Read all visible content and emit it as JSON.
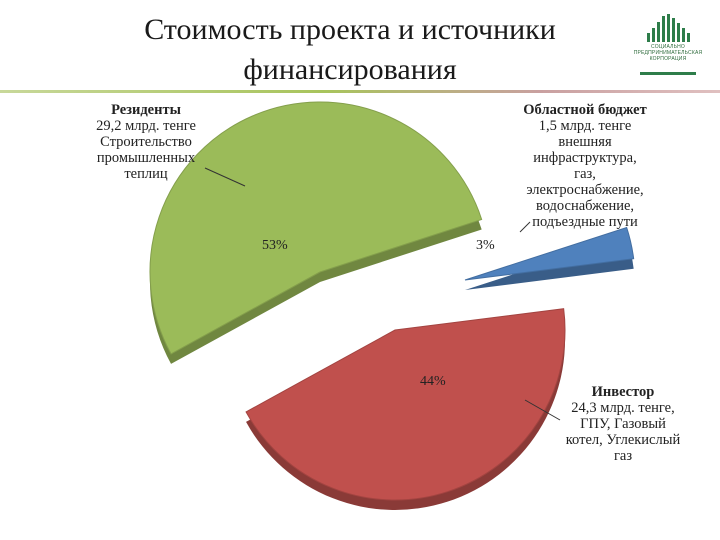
{
  "header": {
    "title_line1": "Стоимость проекта и источники",
    "title_line2": "финансирования"
  },
  "logo": {
    "icon": "city-buildings-icon",
    "lines": [
      "СОЦИАЛЬНО",
      "ПРЕДПРИНИМАТЕЛЬСКАЯ",
      "КОРПОРАЦИЯ"
    ]
  },
  "chart_data": {
    "type": "pie",
    "style": "3d-exploded",
    "slices": [
      {
        "key": "residents",
        "percent": 53,
        "percent_label": "53%",
        "color": "#9bbb59",
        "label_lines": [
          "Резиденты",
          "29,2 млрд. тенге",
          "Строительство",
          "промышленных",
          "теплиц"
        ]
      },
      {
        "key": "regional",
        "percent": 3,
        "percent_label": "3%",
        "color": "#4f81bd",
        "label_lines": [
          "Областной бюджет",
          "1,5 млрд. тенге",
          "внешняя",
          "инфраструктура,",
          "газ,",
          "электроснабжение,",
          "водоснабжение,",
          "подъездные пути"
        ]
      },
      {
        "key": "investor",
        "percent": 44,
        "percent_label": "44%",
        "color": "#c0504d",
        "label_lines": [
          "Инвестор",
          "24,3 млрд. тенге,",
          "ГПУ, Газовый",
          "котел, Углекислый",
          "газ"
        ]
      }
    ]
  }
}
